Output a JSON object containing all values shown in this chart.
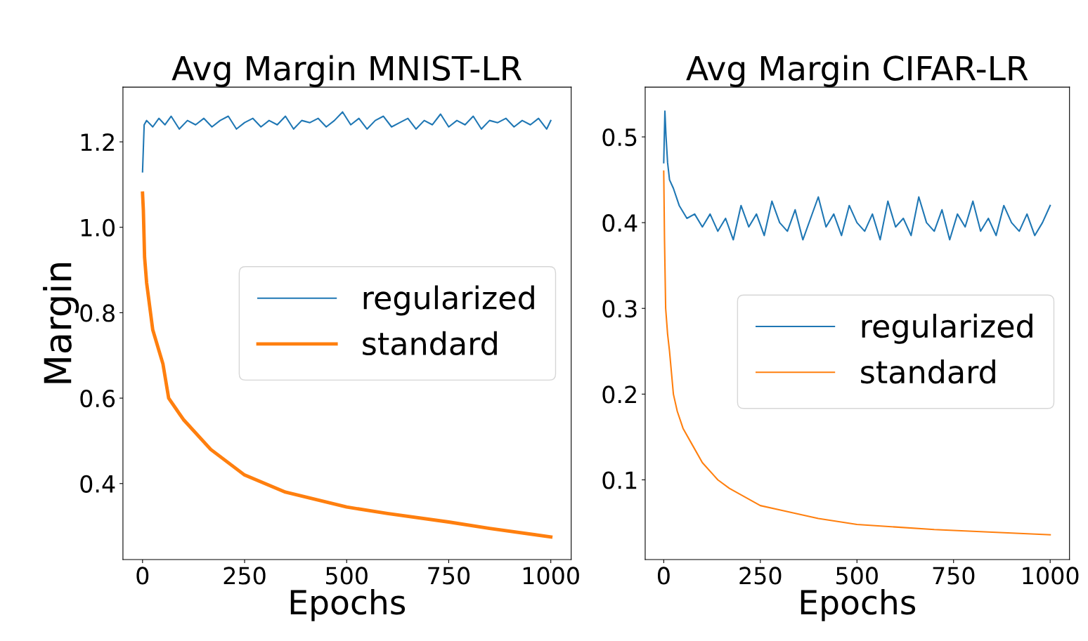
{
  "chart_data": [
    {
      "type": "line",
      "title": "Avg Margin MNIST-LR",
      "xlabel": "Epochs",
      "ylabel": "Margin",
      "xlim": [
        -48,
        1050
      ],
      "ylim": [
        0.222,
        1.328
      ],
      "xticks": [
        0,
        250,
        500,
        750,
        1000
      ],
      "yticks": [
        0.4,
        0.6,
        0.8,
        {
          "value": 1,
          "label": "1.0"
        },
        1.2
      ],
      "legend": "center right",
      "grid": false,
      "series": [
        {
          "name": "regularized",
          "color": "#1f77b4",
          "x": [
            0,
            4,
            10,
            25,
            40,
            55,
            70,
            90,
            110,
            130,
            150,
            170,
            190,
            210,
            230,
            250,
            270,
            290,
            310,
            330,
            350,
            370,
            390,
            410,
            430,
            450,
            470,
            490,
            510,
            530,
            550,
            570,
            590,
            610,
            630,
            650,
            670,
            690,
            710,
            730,
            750,
            770,
            790,
            810,
            830,
            850,
            870,
            890,
            910,
            930,
            950,
            970,
            990,
            1000
          ],
          "values": [
            1.13,
            1.24,
            1.25,
            1.235,
            1.255,
            1.24,
            1.26,
            1.23,
            1.25,
            1.24,
            1.255,
            1.235,
            1.25,
            1.26,
            1.23,
            1.245,
            1.255,
            1.235,
            1.25,
            1.24,
            1.26,
            1.23,
            1.25,
            1.245,
            1.255,
            1.235,
            1.25,
            1.27,
            1.24,
            1.255,
            1.23,
            1.25,
            1.26,
            1.235,
            1.245,
            1.255,
            1.23,
            1.25,
            1.24,
            1.265,
            1.235,
            1.25,
            1.24,
            1.26,
            1.23,
            1.25,
            1.245,
            1.255,
            1.235,
            1.25,
            1.24,
            1.255,
            1.23,
            1.25
          ]
        },
        {
          "name": "standard",
          "color": "#ff7f0e",
          "x": [
            0,
            2,
            5,
            10,
            25,
            50,
            64,
            100,
            167,
            250,
            350,
            500,
            600,
            750,
            850,
            1000
          ],
          "values": [
            1.08,
            1.04,
            0.93,
            0.87,
            0.76,
            0.68,
            0.6,
            0.55,
            0.48,
            0.42,
            0.38,
            0.345,
            0.33,
            0.31,
            0.295,
            0.275
          ]
        }
      ]
    },
    {
      "type": "line",
      "title": "Avg Margin CIFAR-LR",
      "xlabel": "Epochs",
      "xlim": [
        -48,
        1050
      ],
      "ylim": [
        0.007,
        0.558
      ],
      "xticks": [
        0,
        250,
        500,
        750,
        1000
      ],
      "yticks": [
        0.1,
        0.2,
        0.3,
        0.4,
        0.5
      ],
      "legend": "center right",
      "grid": false,
      "series": [
        {
          "name": "regularized",
          "color": "#1f77b4",
          "x": [
            0,
            3,
            6,
            10,
            15,
            25,
            40,
            60,
            80,
            100,
            120,
            140,
            160,
            180,
            200,
            220,
            240,
            260,
            280,
            300,
            320,
            340,
            360,
            380,
            400,
            420,
            440,
            460,
            480,
            500,
            520,
            540,
            560,
            580,
            600,
            620,
            640,
            660,
            680,
            700,
            720,
            740,
            760,
            780,
            800,
            820,
            840,
            860,
            880,
            900,
            920,
            940,
            960,
            980,
            1000
          ],
          "values": [
            0.47,
            0.53,
            0.5,
            0.47,
            0.45,
            0.44,
            0.42,
            0.405,
            0.41,
            0.395,
            0.41,
            0.39,
            0.405,
            0.38,
            0.42,
            0.395,
            0.41,
            0.385,
            0.425,
            0.4,
            0.39,
            0.415,
            0.38,
            0.405,
            0.43,
            0.395,
            0.41,
            0.385,
            0.42,
            0.4,
            0.39,
            0.41,
            0.38,
            0.425,
            0.395,
            0.405,
            0.385,
            0.43,
            0.4,
            0.39,
            0.415,
            0.38,
            0.41,
            0.395,
            0.425,
            0.39,
            0.405,
            0.385,
            0.42,
            0.4,
            0.39,
            0.41,
            0.385,
            0.4,
            0.42
          ]
        },
        {
          "name": "standard",
          "color": "#ff7f0e",
          "x": [
            0,
            2,
            5,
            10,
            15,
            25,
            35,
            50,
            75,
            100,
            140,
            170,
            250,
            300,
            400,
            500,
            600,
            700,
            850,
            1000
          ],
          "values": [
            0.46,
            0.38,
            0.3,
            0.27,
            0.25,
            0.2,
            0.18,
            0.16,
            0.14,
            0.12,
            0.1,
            0.09,
            0.07,
            0.065,
            0.055,
            0.048,
            0.045,
            0.042,
            0.039,
            0.036
          ]
        }
      ]
    }
  ]
}
